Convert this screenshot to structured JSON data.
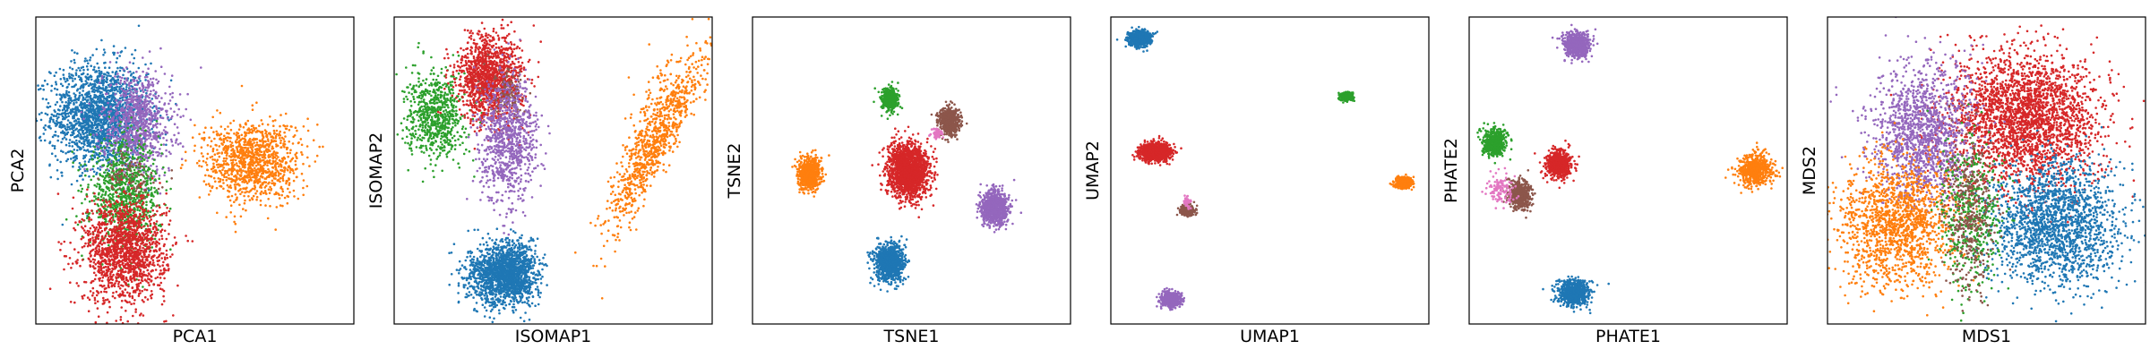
{
  "palette": {
    "blue": "#1f77b4",
    "orange": "#ff7f0e",
    "green": "#2ca02c",
    "red": "#d62728",
    "purple": "#9467bd",
    "brown": "#8c564b",
    "pink": "#e377c2"
  },
  "chart_data": [
    {
      "type": "scatter",
      "xlabel": "PCA1",
      "ylabel": "PCA2",
      "xticks": [],
      "yticks": [],
      "grid": false,
      "legend": "none",
      "xlim": [
        0,
        1
      ],
      "ylim": [
        0,
        1
      ],
      "clusters": [
        {
          "color": "#1f77b4",
          "cx": 0.2,
          "cy": 0.68,
          "sx": 0.075,
          "sy": 0.085,
          "n": 1800
        },
        {
          "color": "#9467bd",
          "cx": 0.32,
          "cy": 0.65,
          "sx": 0.055,
          "sy": 0.085,
          "n": 900
        },
        {
          "color": "#2ca02c",
          "cx": 0.28,
          "cy": 0.42,
          "sx": 0.055,
          "sy": 0.085,
          "n": 900
        },
        {
          "color": "#d62728",
          "cx": 0.28,
          "cy": 0.24,
          "sx": 0.065,
          "sy": 0.085,
          "n": 1500
        },
        {
          "color": "#ff7f0e",
          "cx": 0.68,
          "cy": 0.53,
          "sx": 0.075,
          "sy": 0.065,
          "n": 1100
        },
        {
          "color": "#8c564b",
          "cx": 0.3,
          "cy": 0.48,
          "sx": 0.04,
          "sy": 0.04,
          "n": 80
        }
      ]
    },
    {
      "type": "scatter",
      "xlabel": "ISOMAP1",
      "ylabel": "ISOMAP2",
      "xticks": [],
      "yticks": [],
      "grid": false,
      "legend": "none",
      "xlim": [
        0,
        1
      ],
      "ylim": [
        0,
        1
      ],
      "clusters": [
        {
          "color": "#2ca02c",
          "cx": 0.13,
          "cy": 0.68,
          "sx": 0.045,
          "sy": 0.07,
          "n": 700
        },
        {
          "color": "#d62728",
          "cx": 0.3,
          "cy": 0.8,
          "sx": 0.05,
          "sy": 0.07,
          "n": 1300
        },
        {
          "color": "#8c564b",
          "cx": 0.36,
          "cy": 0.75,
          "sx": 0.03,
          "sy": 0.04,
          "n": 120
        },
        {
          "color": "#9467bd",
          "cx": 0.36,
          "cy": 0.6,
          "sx": 0.045,
          "sy": 0.1,
          "n": 900
        },
        {
          "color": "#1f77b4",
          "cx": 0.33,
          "cy": 0.16,
          "sx": 0.05,
          "sy": 0.05,
          "n": 1200
        },
        {
          "color": "#1f77b4",
          "cx": 0.39,
          "cy": 0.17,
          "sx": 0.03,
          "sy": 0.05,
          "n": 500
        },
        {
          "color": "#ff7f0e",
          "cx": 0.84,
          "cy": 0.62,
          "sx": 0.03,
          "sy": 0.14,
          "n": 700,
          "tilt": -0.5
        },
        {
          "color": "#ff7f0e",
          "cx": 0.78,
          "cy": 0.58,
          "sx": 0.03,
          "sy": 0.16,
          "n": 250,
          "tilt": -0.3
        }
      ]
    },
    {
      "type": "scatter",
      "xlabel": "TSNE1",
      "ylabel": "TSNE2",
      "xticks": [],
      "yticks": [],
      "grid": false,
      "legend": "none",
      "xlim": [
        0,
        1
      ],
      "ylim": [
        0,
        1
      ],
      "clusters": [
        {
          "color": "#2ca02c",
          "cx": 0.43,
          "cy": 0.73,
          "sx": 0.013,
          "sy": 0.018,
          "n": 500
        },
        {
          "color": "#8c564b",
          "cx": 0.62,
          "cy": 0.66,
          "sx": 0.016,
          "sy": 0.022,
          "n": 600
        },
        {
          "color": "#e377c2",
          "cx": 0.58,
          "cy": 0.62,
          "sx": 0.008,
          "sy": 0.008,
          "n": 80
        },
        {
          "color": "#d62728",
          "cx": 0.49,
          "cy": 0.5,
          "sx": 0.032,
          "sy": 0.042,
          "n": 1800
        },
        {
          "color": "#ff7f0e",
          "cx": 0.18,
          "cy": 0.49,
          "sx": 0.018,
          "sy": 0.025,
          "n": 700
        },
        {
          "color": "#9467bd",
          "cx": 0.76,
          "cy": 0.38,
          "sx": 0.02,
          "sy": 0.028,
          "n": 900
        },
        {
          "color": "#1f77b4",
          "cx": 0.43,
          "cy": 0.2,
          "sx": 0.022,
          "sy": 0.03,
          "n": 1100
        }
      ]
    },
    {
      "type": "scatter",
      "xlabel": "UMAP1",
      "ylabel": "UMAP2",
      "xticks": [],
      "yticks": [],
      "grid": false,
      "legend": "none",
      "xlim": [
        0,
        1
      ],
      "ylim": [
        0,
        1
      ],
      "clusters": [
        {
          "color": "#1f77b4",
          "cx": 0.09,
          "cy": 0.93,
          "sx": 0.017,
          "sy": 0.012,
          "n": 800
        },
        {
          "color": "#2ca02c",
          "cx": 0.74,
          "cy": 0.74,
          "sx": 0.01,
          "sy": 0.007,
          "n": 300
        },
        {
          "color": "#d62728",
          "cx": 0.14,
          "cy": 0.56,
          "sx": 0.022,
          "sy": 0.014,
          "n": 1200
        },
        {
          "color": "#ff7f0e",
          "cx": 0.92,
          "cy": 0.46,
          "sx": 0.014,
          "sy": 0.009,
          "n": 400
        },
        {
          "color": "#8c564b",
          "cx": 0.24,
          "cy": 0.37,
          "sx": 0.011,
          "sy": 0.008,
          "n": 350
        },
        {
          "color": "#e377c2",
          "cx": 0.24,
          "cy": 0.4,
          "sx": 0.005,
          "sy": 0.008,
          "n": 50
        },
        {
          "color": "#9467bd",
          "cx": 0.19,
          "cy": 0.08,
          "sx": 0.015,
          "sy": 0.011,
          "n": 600
        }
      ]
    },
    {
      "type": "scatter",
      "xlabel": "PHATE1",
      "ylabel": "PHATE2",
      "xticks": [],
      "yticks": [],
      "grid": false,
      "legend": "none",
      "xlim": [
        0,
        1
      ],
      "ylim": [
        0,
        1
      ],
      "clusters": [
        {
          "color": "#9467bd",
          "cx": 0.34,
          "cy": 0.91,
          "sx": 0.02,
          "sy": 0.02,
          "n": 600
        },
        {
          "color": "#2ca02c",
          "cx": 0.08,
          "cy": 0.59,
          "sx": 0.018,
          "sy": 0.022,
          "n": 500
        },
        {
          "color": "#d62728",
          "cx": 0.28,
          "cy": 0.52,
          "sx": 0.02,
          "sy": 0.022,
          "n": 600
        },
        {
          "color": "#8c564b",
          "cx": 0.16,
          "cy": 0.42,
          "sx": 0.018,
          "sy": 0.025,
          "n": 500
        },
        {
          "color": "#e377c2",
          "cx": 0.1,
          "cy": 0.44,
          "sx": 0.02,
          "sy": 0.03,
          "n": 120
        },
        {
          "color": "#ff7f0e",
          "cx": 0.9,
          "cy": 0.5,
          "sx": 0.025,
          "sy": 0.025,
          "n": 600
        },
        {
          "color": "#1f77b4",
          "cx": 0.33,
          "cy": 0.1,
          "sx": 0.025,
          "sy": 0.02,
          "n": 700
        }
      ]
    },
    {
      "type": "scatter",
      "xlabel": "MDS1",
      "ylabel": "MDS2",
      "xticks": [],
      "yticks": [],
      "grid": false,
      "legend": "none",
      "xlim": [
        0,
        1
      ],
      "ylim": [
        0,
        1
      ],
      "clusters": [
        {
          "color": "#d62728",
          "cx": 0.62,
          "cy": 0.67,
          "sx": 0.12,
          "sy": 0.11,
          "n": 2600
        },
        {
          "color": "#9467bd",
          "cx": 0.3,
          "cy": 0.62,
          "sx": 0.08,
          "sy": 0.11,
          "n": 1400
        },
        {
          "color": "#ff7f0e",
          "cx": 0.22,
          "cy": 0.33,
          "sx": 0.09,
          "sy": 0.1,
          "n": 1500
        },
        {
          "color": "#1f77b4",
          "cx": 0.72,
          "cy": 0.33,
          "sx": 0.1,
          "sy": 0.1,
          "n": 1800
        },
        {
          "color": "#2ca02c",
          "cx": 0.45,
          "cy": 0.35,
          "sx": 0.05,
          "sy": 0.12,
          "n": 500
        },
        {
          "color": "#8c564b",
          "cx": 0.45,
          "cy": 0.35,
          "sx": 0.04,
          "sy": 0.12,
          "n": 400
        }
      ]
    }
  ]
}
